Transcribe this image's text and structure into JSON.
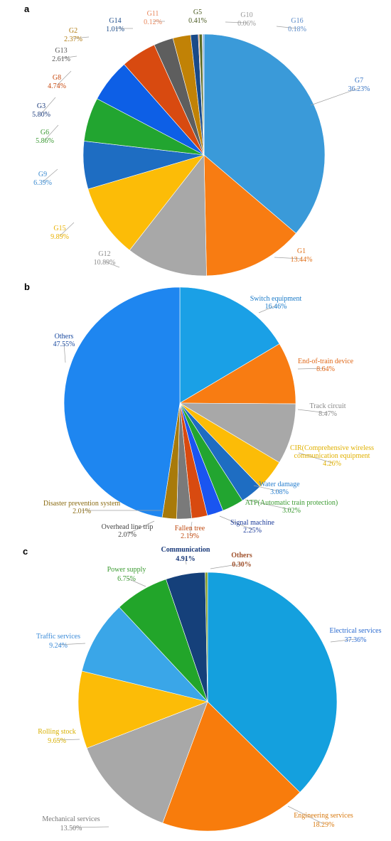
{
  "chart_data": [
    {
      "type": "pie",
      "panel": "a",
      "series": [
        {
          "label": "G7",
          "value": 36.23,
          "value_text": "36.23%",
          "color": "#3a9ad9",
          "label_color": "#3a76c4"
        },
        {
          "label": "G1",
          "value": 13.44,
          "value_text": "13.44%",
          "color": "#f87c12",
          "label_color": "#e0701a"
        },
        {
          "label": "G12",
          "value": 10.89,
          "value_text": "10.89%",
          "color": "#a8a8a8",
          "label_color": "#8a8a8a"
        },
        {
          "label": "G15",
          "value": 9.89,
          "value_text": "9.89%",
          "color": "#fcbc07",
          "label_color": "#e8b000"
        },
        {
          "label": "G9",
          "value": 6.39,
          "value_text": "6.39%",
          "color": "#1e6dc2",
          "label_color": "#3a8ad0"
        },
        {
          "label": "G6",
          "value": 5.86,
          "value_text": "5.86%",
          "color": "#22a530",
          "label_color": "#3c9a35"
        },
        {
          "label": "G3",
          "value": 5.8,
          "value_text": "5.80%",
          "color": "#0d5fe6",
          "label_color": "#1a3a7a"
        },
        {
          "label": "G8",
          "value": 4.74,
          "value_text": "4.74%",
          "color": "#d84a10",
          "label_color": "#c84a10"
        },
        {
          "label": "G13",
          "value": 2.61,
          "value_text": "2.61%",
          "color": "#5e5e5e",
          "label_color": "#555555"
        },
        {
          "label": "G2",
          "value": 2.37,
          "value_text": "2.37%",
          "color": "#c18206",
          "label_color": "#b07a10"
        },
        {
          "label": "G14",
          "value": 1.01,
          "value_text": "1.01%",
          "color": "#1a4a88",
          "label_color": "#1a4a88"
        },
        {
          "label": "G11",
          "value": 0.12,
          "value_text": "0.12%",
          "color": "#f08a50",
          "label_color": "#e8855a"
        },
        {
          "label": "G5",
          "value": 0.41,
          "value_text": "0.41%",
          "color": "#5a6a22",
          "label_color": "#4a5a20"
        },
        {
          "label": "G10",
          "value": 0.06,
          "value_text": "0.06%",
          "color": "#c0c0c0",
          "label_color": "#999999"
        },
        {
          "label": "G16",
          "value": 0.18,
          "value_text": "0.18%",
          "color": "#6a9ad8",
          "label_color": "#5a8ac8"
        }
      ]
    },
    {
      "type": "pie",
      "panel": "b",
      "series": [
        {
          "label": "Switch equipment",
          "label2": "",
          "value": 16.46,
          "value_text": "16.46%",
          "color": "#1aa0e6",
          "label_color": "#1a7ac8"
        },
        {
          "label": "End-of-train device",
          "label2": "",
          "value": 8.64,
          "value_text": "8.64%",
          "color": "#f87c12",
          "label_color": "#e06818"
        },
        {
          "label": "Track circuit",
          "label2": "",
          "value": 8.47,
          "value_text": "8.47%",
          "color": "#a8a8a8",
          "label_color": "#888888"
        },
        {
          "label": "CIR(Comprehensive wireless",
          "label2": "communication equipment",
          "value": 4.26,
          "value_text": "4.26%",
          "color": "#fcbc07",
          "label_color": "#e0b000"
        },
        {
          "label": "Water damage",
          "label2": "",
          "value": 3.08,
          "value_text": "3.08%",
          "color": "#1e6dc2",
          "label_color": "#2a80d0"
        },
        {
          "label": "ATP(Automatic train protection)",
          "label2": "",
          "value": 3.02,
          "value_text": "3.02%",
          "color": "#22a530",
          "label_color": "#3a9a30"
        },
        {
          "label": "Signal machine",
          "label2": "",
          "value": 2.25,
          "value_text": "2.25%",
          "color": "#1a55f0",
          "label_color": "#1a3a9a"
        },
        {
          "label": "Fallen tree",
          "label2": "",
          "value": 2.19,
          "value_text": "2.19%",
          "color": "#d84a10",
          "label_color": "#c04a10"
        },
        {
          "label": "Overhead line trip",
          "label2": "",
          "value": 2.07,
          "value_text": "2.07%",
          "color": "#7a7a7a",
          "label_color": "#444444"
        },
        {
          "label": "Disaster prevention system",
          "label2": "",
          "value": 2.01,
          "value_text": "2.01%",
          "color": "#a87a0a",
          "label_color": "#8a6a10"
        },
        {
          "label": "Others",
          "label2": "",
          "value": 47.55,
          "value_text": "47.55%",
          "color": "#1e86f0",
          "label_color": "#1a4aa0"
        }
      ]
    },
    {
      "type": "pie",
      "panel": "c",
      "series": [
        {
          "label": "Electrical services",
          "value": 37.36,
          "value_text": "37.36%",
          "color": "#14a0de",
          "label_color": "#2a6ad0"
        },
        {
          "label": "Engineering services",
          "value": 18.29,
          "value_text": "18.29%",
          "color": "#f87c0c",
          "label_color": "#d87a10"
        },
        {
          "label": "Mechanical services",
          "value": 13.5,
          "value_text": "13.50%",
          "color": "#a8a8a8",
          "label_color": "#7a7a7a"
        },
        {
          "label": "Rolling stock",
          "value": 9.65,
          "value_text": "9.65%",
          "color": "#fcbc07",
          "label_color": "#d8b000"
        },
        {
          "label": "Traffic services",
          "value": 9.24,
          "value_text": "9.24%",
          "color": "#3aa6e8",
          "label_color": "#3a8ad8"
        },
        {
          "label": "Power supply",
          "value": 6.75,
          "value_text": "6.75%",
          "color": "#22a52a",
          "label_color": "#3a9a30"
        },
        {
          "label": "Communication",
          "value": 4.91,
          "value_text": "4.91%",
          "color": "#15407a",
          "label_color": "#1a3a7a"
        },
        {
          "label": "Others",
          "value": 0.3,
          "value_text": "0.30%",
          "color": "#8aa028",
          "label_color": "#a0522d"
        }
      ]
    }
  ]
}
